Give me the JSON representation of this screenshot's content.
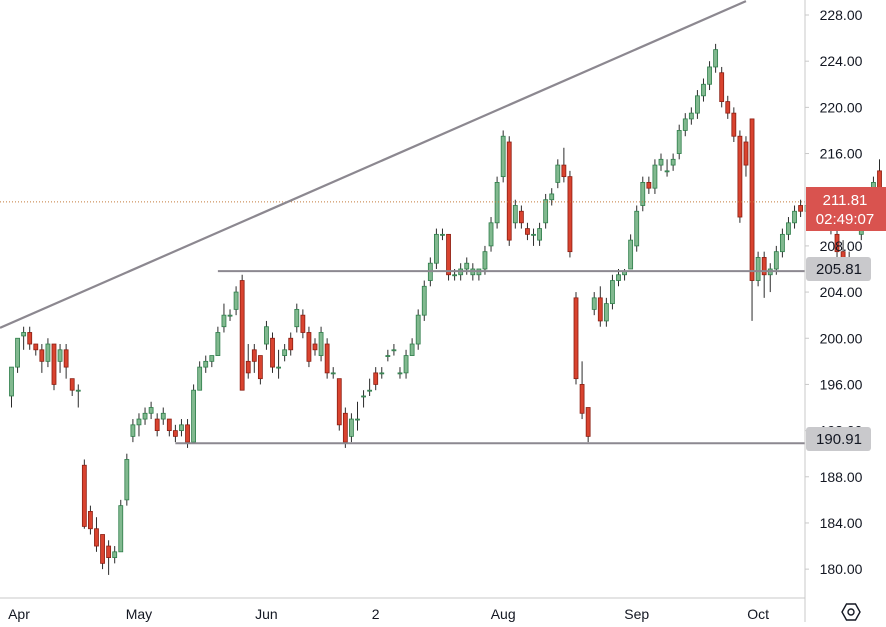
{
  "colors": {
    "up_fill": "#81b98f",
    "up_stroke": "#2e7d4a",
    "down_fill": "#d9432f",
    "down_stroke": "#8b1e12",
    "wick": "#2b2b2b",
    "axis_text": "#131722",
    "axis_line": "#c8c8c8",
    "trendline": "#8c8890",
    "level_line": "#8c8890",
    "last_price_bg": "#d9534f",
    "level_label_bg": "#c9c9cc",
    "current_price_line": "#c47a3a"
  },
  "price_axis": {
    "ticks": [
      {
        "value": 228,
        "label": "228.00"
      },
      {
        "value": 224,
        "label": "224.00"
      },
      {
        "value": 220,
        "label": "220.00"
      },
      {
        "value": 216,
        "label": "216.00"
      },
      {
        "value": 208,
        "label": "208.00"
      },
      {
        "value": 204,
        "label": "204.00"
      },
      {
        "value": 200,
        "label": "200.00"
      },
      {
        "value": 196,
        "label": "196.00"
      },
      {
        "value": 192,
        "label": "192.00"
      },
      {
        "value": 188,
        "label": "188.00"
      },
      {
        "value": 184,
        "label": "184.00"
      },
      {
        "value": 180,
        "label": "180.00"
      }
    ]
  },
  "time_axis": {
    "labels": [
      {
        "label": "Apr",
        "bar": 0
      },
      {
        "label": "May",
        "bar": 21
      },
      {
        "label": "Jun",
        "bar": 42
      },
      {
        "label": "2",
        "bar": 60
      },
      {
        "label": "Aug",
        "bar": 81
      },
      {
        "label": "Sep",
        "bar": 103
      },
      {
        "label": "Oct",
        "bar": 123
      }
    ]
  },
  "badges": {
    "last_price": "211.81",
    "countdown": "02:49:07",
    "resistance": "205.81",
    "support": "190.91"
  },
  "settings_icon": "gear-hexagon-icon",
  "chart_data": {
    "type": "candlestick",
    "title": "",
    "xlabel": "",
    "ylabel": "",
    "ylim": [
      177.5,
      229.3
    ],
    "grid": false,
    "last_price": 211.81,
    "horizontal_levels": [
      205.81,
      190.91
    ],
    "trendline": {
      "from_bar": 0,
      "from_price": 200.9,
      "to_bar": 121,
      "to_price": 229.2
    },
    "candles": [
      [
        195,
        197.5,
        194,
        197.5
      ],
      [
        197.5,
        200,
        197,
        200
      ],
      [
        200.2,
        201,
        199,
        200.5
      ],
      [
        200.5,
        201,
        199,
        199.5
      ],
      [
        199.5,
        199.5,
        198.5,
        199
      ],
      [
        199,
        199.5,
        197,
        198
      ],
      [
        198,
        200,
        197.5,
        199.5
      ],
      [
        199.5,
        199.5,
        195.5,
        196
      ],
      [
        198,
        199.5,
        197,
        199
      ],
      [
        199,
        199.5,
        196.5,
        197.5
      ],
      [
        196.5,
        196.5,
        195,
        195.5
      ],
      [
        195.5,
        196,
        194,
        195.5
      ],
      [
        189,
        189.5,
        183.5,
        183.7
      ],
      [
        185,
        185.5,
        183,
        183.5
      ],
      [
        183.5,
        184.5,
        181.5,
        182
      ],
      [
        183,
        183,
        180,
        180.5
      ],
      [
        182,
        182.5,
        179.5,
        181
      ],
      [
        181,
        182,
        180.5,
        181.5
      ],
      [
        181.5,
        186,
        181.5,
        185.5
      ],
      [
        186,
        190,
        185.5,
        189.5
      ],
      [
        191.5,
        193,
        191,
        192.5
      ],
      [
        192.5,
        193.5,
        191.5,
        193
      ],
      [
        193,
        194,
        192.5,
        193.5
      ],
      [
        193.5,
        194.5,
        193,
        194
      ],
      [
        193,
        193.5,
        191.5,
        192
      ],
      [
        193,
        194,
        192.5,
        193.5
      ],
      [
        193,
        193,
        191.5,
        192
      ],
      [
        192,
        192.5,
        191,
        191.5
      ],
      [
        192,
        193,
        191.5,
        192.5
      ],
      [
        192.5,
        193,
        190.5,
        191
      ],
      [
        191,
        196,
        190.9,
        195.5
      ],
      [
        195.5,
        198,
        195.5,
        197.5
      ],
      [
        197.5,
        198.5,
        197,
        198
      ],
      [
        198,
        198.5,
        197.5,
        198.5
      ],
      [
        198.5,
        201,
        198.5,
        200.5
      ],
      [
        201,
        203,
        200.5,
        202
      ],
      [
        202,
        202.5,
        201.5,
        202
      ],
      [
        202.5,
        204.5,
        202,
        204
      ],
      [
        205,
        205.5,
        195.5,
        195.5
      ],
      [
        198,
        199.5,
        196.5,
        197
      ],
      [
        199,
        199.5,
        197,
        198
      ],
      [
        198.5,
        198.5,
        196,
        196.5
      ],
      [
        199.5,
        201.5,
        199,
        201
      ],
      [
        200,
        200.5,
        197,
        197.5
      ],
      [
        197.5,
        199,
        196.5,
        197.5
      ],
      [
        198.5,
        199.5,
        198,
        199
      ],
      [
        200,
        200.5,
        198.5,
        199
      ],
      [
        201,
        203,
        200.5,
        202.5
      ],
      [
        202,
        202.5,
        200,
        200.5
      ],
      [
        200.5,
        201,
        197.5,
        198
      ],
      [
        199.5,
        200,
        198.5,
        199
      ],
      [
        198.5,
        201,
        198,
        200.5
      ],
      [
        199.5,
        200,
        196.5,
        197
      ],
      [
        197,
        197.5,
        196.5,
        197
      ],
      [
        196.5,
        196.5,
        192,
        192.5
      ],
      [
        193.5,
        194,
        190.5,
        191
      ],
      [
        191.5,
        193.5,
        191,
        193
      ],
      [
        193,
        194.5,
        192,
        193
      ],
      [
        195,
        195.5,
        194,
        195
      ],
      [
        195.5,
        196.5,
        195,
        195.5
      ],
      [
        197,
        197.5,
        195.5,
        196
      ],
      [
        197,
        197.5,
        196.5,
        197
      ],
      [
        198.5,
        199,
        198,
        198.5
      ],
      [
        199,
        199.5,
        198.5,
        199
      ],
      [
        197,
        197.5,
        196.5,
        197
      ],
      [
        197,
        199,
        196.5,
        198.5
      ],
      [
        198.5,
        200,
        198.5,
        199.5
      ],
      [
        199.5,
        202.5,
        199,
        202
      ],
      [
        202,
        205,
        201.5,
        204.5
      ],
      [
        205,
        207,
        204.5,
        206.5
      ],
      [
        206.5,
        209.5,
        206,
        209
      ],
      [
        209,
        209.5,
        208.5,
        209
      ],
      [
        209,
        209,
        205,
        205.5
      ],
      [
        205.5,
        206,
        205,
        205.5
      ],
      [
        205.5,
        206.5,
        205,
        206
      ],
      [
        206,
        207,
        205.5,
        206.5
      ],
      [
        205.5,
        206.5,
        205,
        206
      ],
      [
        205.5,
        206,
        205,
        206
      ],
      [
        206,
        208,
        205.5,
        207.5
      ],
      [
        208,
        210.5,
        207.5,
        210
      ],
      [
        210,
        214,
        209.5,
        213.5
      ],
      [
        214,
        218,
        213.5,
        217.5
      ],
      [
        217,
        217.5,
        208,
        208.5
      ],
      [
        210,
        212,
        209.5,
        211.5
      ],
      [
        211,
        211.5,
        209.5,
        210
      ],
      [
        209.5,
        210,
        208.5,
        209
      ],
      [
        209,
        209.5,
        208,
        209
      ],
      [
        208.5,
        210,
        208,
        209.5
      ],
      [
        210,
        212.5,
        209.5,
        212
      ],
      [
        212,
        213,
        211.5,
        212.5
      ],
      [
        213.5,
        215.5,
        213,
        215
      ],
      [
        215,
        216.5,
        213.5,
        214
      ],
      [
        214,
        214.5,
        207,
        207.5
      ],
      [
        203.5,
        204,
        196,
        196.5
      ],
      [
        196,
        198,
        193,
        193.5
      ],
      [
        194,
        194,
        191,
        191.5
      ],
      [
        202.5,
        204,
        202,
        203.5
      ],
      [
        203.5,
        204.5,
        201,
        201.5
      ],
      [
        201.5,
        203.5,
        201,
        203
      ],
      [
        203,
        205.5,
        202.5,
        205
      ],
      [
        205,
        206,
        204.5,
        205.5
      ],
      [
        205.5,
        206,
        205,
        205.8
      ],
      [
        206,
        209,
        206,
        208.5
      ],
      [
        208,
        211.5,
        207.5,
        211
      ],
      [
        211.5,
        214,
        211,
        213.5
      ],
      [
        213.5,
        214,
        212.5,
        213
      ],
      [
        213,
        215.5,
        212.5,
        215
      ],
      [
        215,
        216,
        214.5,
        215.5
      ],
      [
        214.5,
        215.5,
        214,
        214.5
      ],
      [
        215,
        216,
        214.5,
        215.5
      ],
      [
        216,
        218.5,
        215.5,
        218
      ],
      [
        218,
        219.5,
        217.5,
        219
      ],
      [
        219,
        220,
        218.5,
        219.5
      ],
      [
        219.5,
        221.5,
        219,
        221
      ],
      [
        221,
        222.5,
        220.5,
        222
      ],
      [
        222,
        224,
        221.5,
        223.5
      ],
      [
        223.5,
        225.5,
        223,
        225
      ],
      [
        223,
        223.5,
        220,
        220.5
      ],
      [
        220.5,
        221,
        219,
        219.5
      ],
      [
        219.5,
        220,
        217,
        217.5
      ],
      [
        217.5,
        218,
        210,
        210.5
      ],
      [
        217,
        217.5,
        214,
        215
      ],
      [
        219,
        219,
        201.5,
        205
      ],
      [
        205,
        207.5,
        204.5,
        207
      ],
      [
        207,
        207.5,
        203.5,
        205.5
      ],
      [
        205.5,
        206.5,
        204,
        206
      ],
      [
        206,
        208,
        205.5,
        207.5
      ],
      [
        207.5,
        209.5,
        207,
        209
      ],
      [
        209,
        210.5,
        208.5,
        210
      ],
      [
        210,
        211.5,
        209.5,
        211
      ],
      [
        211.5,
        212,
        210.5,
        211
      ],
      [
        211,
        212,
        210.5,
        211.5
      ],
      [
        211.5,
        212.5,
        211,
        212
      ],
      [
        212,
        212.5,
        210.5,
        211
      ],
      [
        211,
        211.5,
        209.5,
        210
      ],
      [
        209.5,
        210.5,
        209,
        210
      ],
      [
        209,
        209.5,
        207,
        207.5
      ],
      [
        207.5,
        208.5,
        205.5,
        206
      ],
      [
        206,
        207.5,
        205.5,
        207
      ],
      [
        206,
        206.5,
        205,
        205.5
      ],
      [
        209,
        212,
        208.5,
        211.5
      ],
      [
        211,
        211.5,
        210.5,
        211
      ],
      [
        211.5,
        214,
        211,
        213.5
      ],
      [
        214.5,
        215.5,
        211.5,
        211.81
      ]
    ]
  }
}
